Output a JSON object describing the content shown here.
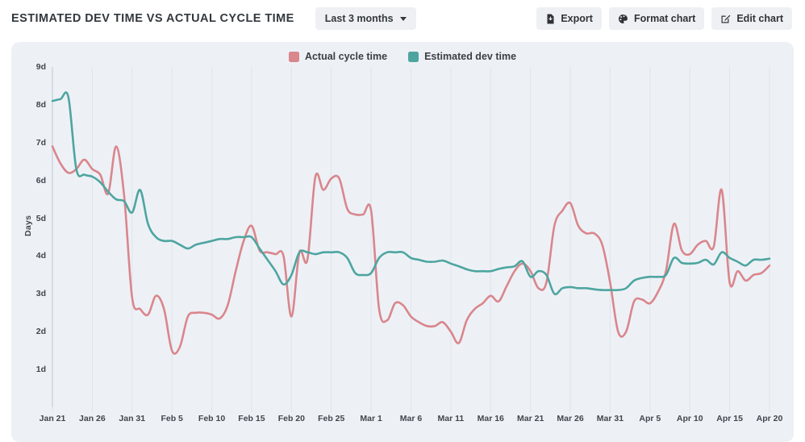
{
  "header": {
    "title": "ESTIMATED DEV TIME VS ACTUAL CYCLE TIME",
    "range_selector": {
      "value": "Last 3 months"
    },
    "buttons": [
      {
        "label": "Export"
      },
      {
        "label": "Format chart"
      },
      {
        "label": "Edit chart"
      }
    ]
  },
  "colors": {
    "card_background": "#edf1f6",
    "gridline": "#dee4eb",
    "axis_line": "#c8ced6",
    "actual_cycle_time": "#d9868c",
    "estimated_dev_time": "#4ea5a0",
    "text": "#33383e"
  },
  "chart_data": {
    "type": "line",
    "ylabel": "Days",
    "ylim": [
      0,
      9
    ],
    "y_tick_labels": [
      "1d",
      "2d",
      "3d",
      "4d",
      "5d",
      "6d",
      "7d",
      "8d",
      "9d"
    ],
    "x_tick_labels": [
      "Jan 21",
      "Jan 26",
      "Jan 31",
      "Feb 5",
      "Feb 10",
      "Feb 15",
      "Feb 20",
      "Feb 25",
      "Mar 1",
      "Mar 6",
      "Mar 11",
      "Mar 16",
      "Mar 21",
      "Mar 26",
      "Mar 31",
      "Apr 5",
      "Apr 10",
      "Apr 15",
      "Apr 20"
    ],
    "x_tick_interval_days": 5,
    "x_total_days": 90,
    "grid": "vertical-only",
    "legend_position": "top-center",
    "units": "days",
    "series": [
      {
        "name": "Actual cycle time",
        "color": "#d9868c",
        "values": [
          6.9,
          6.45,
          6.2,
          6.3,
          6.55,
          6.3,
          6.15,
          5.65,
          6.9,
          5.6,
          2.9,
          2.6,
          2.45,
          2.95,
          2.6,
          1.5,
          1.6,
          2.4,
          2.5,
          2.5,
          2.45,
          2.35,
          2.7,
          3.6,
          4.4,
          4.8,
          4.15,
          4.1,
          4.05,
          4.0,
          2.4,
          4.1,
          3.9,
          6.1,
          5.75,
          6.05,
          6.05,
          5.25,
          5.1,
          5.1,
          5.2,
          2.6,
          2.3,
          2.75,
          2.7,
          2.4,
          2.25,
          2.15,
          2.15,
          2.25,
          2.0,
          1.7,
          2.3,
          2.6,
          2.75,
          2.95,
          2.8,
          3.2,
          3.6,
          3.8,
          3.6,
          3.15,
          3.3,
          4.8,
          5.2,
          5.4,
          4.8,
          4.6,
          4.6,
          4.3,
          3.3,
          2.0,
          2.0,
          2.8,
          2.85,
          2.75,
          3.05,
          3.6,
          4.85,
          4.15,
          4.05,
          4.3,
          4.4,
          4.25,
          5.75,
          3.3,
          3.6,
          3.35,
          3.5,
          3.55,
          3.75
        ]
      },
      {
        "name": "Estimated dev time",
        "color": "#4ea5a0",
        "values": [
          8.1,
          8.15,
          8.2,
          6.3,
          6.15,
          6.1,
          5.95,
          5.7,
          5.5,
          5.45,
          5.15,
          5.75,
          4.85,
          4.5,
          4.4,
          4.4,
          4.3,
          4.2,
          4.3,
          4.35,
          4.4,
          4.45,
          4.45,
          4.5,
          4.5,
          4.5,
          4.2,
          3.9,
          3.6,
          3.25,
          3.5,
          4.1,
          4.1,
          4.05,
          4.1,
          4.1,
          4.1,
          3.95,
          3.55,
          3.5,
          3.55,
          3.95,
          4.1,
          4.1,
          4.1,
          3.95,
          3.9,
          3.85,
          3.85,
          3.88,
          3.8,
          3.73,
          3.65,
          3.6,
          3.6,
          3.6,
          3.66,
          3.7,
          3.73,
          3.86,
          3.45,
          3.6,
          3.5,
          3.0,
          3.15,
          3.18,
          3.15,
          3.15,
          3.12,
          3.1,
          3.1,
          3.1,
          3.15,
          3.35,
          3.42,
          3.45,
          3.45,
          3.5,
          3.95,
          3.82,
          3.8,
          3.82,
          3.9,
          3.78,
          4.1,
          3.95,
          3.85,
          3.75,
          3.9,
          3.9,
          3.93
        ]
      }
    ]
  }
}
